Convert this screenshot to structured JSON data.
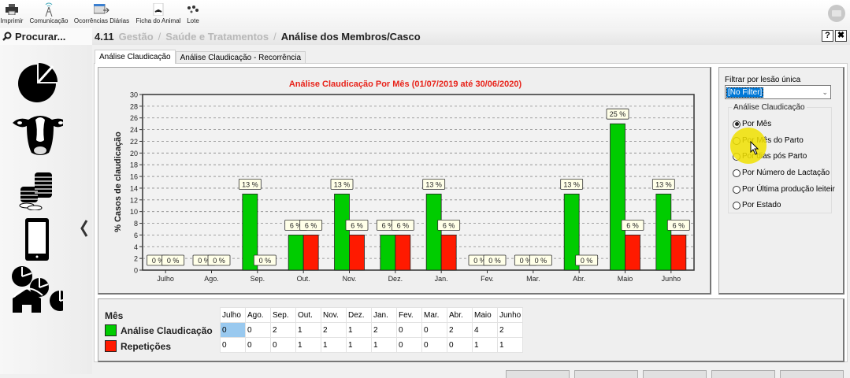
{
  "toolbar": {
    "items": [
      {
        "label": "Imprimir",
        "icon": "printer-icon"
      },
      {
        "label": "Comunicação",
        "icon": "antenna-icon"
      },
      {
        "label": "Ocorrências Diárias",
        "icon": "calendar-icon"
      },
      {
        "label": "Ficha do Animal",
        "icon": "animal-card-icon"
      },
      {
        "label": "Lote",
        "icon": "herd-icon"
      }
    ],
    "mail_icon": "mail-icon"
  },
  "search": {
    "label": "Procurar..."
  },
  "breadcrumb": {
    "number": "4.11",
    "items": [
      "Gestão",
      "Saúde e Tratamentos"
    ],
    "separator": "/",
    "current": "Análise dos Membros/Casco"
  },
  "window": {
    "help_label": "?",
    "close_label": "✖"
  },
  "sidebar": {
    "icons": [
      "pie-chart-icon",
      "cow-icon",
      "coins-icon",
      "mobile-icon",
      "farm-charts-icon"
    ],
    "collapse_label": "‹"
  },
  "tabs": [
    {
      "label": "Análise Claudicação",
      "active": true
    },
    {
      "label": "Análise Claudicação - Recorrência",
      "active": false
    }
  ],
  "filter": {
    "label": "Filtrar por lesão única",
    "value": "[No Filter]",
    "group_label": "Análise Claudicação",
    "options": [
      {
        "label": "Por Mês",
        "checked": true
      },
      {
        "label": "Por Mês do Parto",
        "checked": false
      },
      {
        "label": "Por dias pós Parto",
        "checked": false
      },
      {
        "label": "Por Número de Lactação",
        "checked": false
      },
      {
        "label": "Por Última produção leiteir",
        "checked": false
      },
      {
        "label": "Por Estado",
        "checked": false
      }
    ]
  },
  "colors": {
    "series1": "#00cc00",
    "series2": "#ff1a00",
    "title": "#e8231a",
    "label_bg": "#ffffe8"
  },
  "chart_data": {
    "type": "bar",
    "title": "Análise Claudicação Por Mês (01/07/2019 até 30/06/2020)",
    "xlabel": "",
    "ylabel": "% Casos de claudicação",
    "ylim": [
      0,
      30
    ],
    "yticks": [
      0,
      2,
      4,
      6,
      8,
      10,
      12,
      14,
      16,
      18,
      20,
      22,
      24,
      26,
      28,
      30
    ],
    "grid": true,
    "categories": [
      "Julho",
      "Ago.",
      "Sep.",
      "Out.",
      "Nov.",
      "Dez.",
      "Jan.",
      "Fev.",
      "Mar.",
      "Abr.",
      "Maio",
      "Junho"
    ],
    "series": [
      {
        "name": "Análise Claudicação",
        "color": "#00cc00",
        "values": [
          0,
          0,
          13,
          6,
          13,
          6,
          13,
          0,
          0,
          13,
          25,
          13
        ],
        "labels": [
          "0 %",
          "0 %",
          "13 %",
          "6 %",
          "13 %",
          "6 %",
          "13 %",
          "0 %",
          "0 %",
          "13 %",
          "25 %",
          "13 %"
        ]
      },
      {
        "name": "Repetições",
        "color": "#ff1a00",
        "values": [
          0,
          0,
          0,
          6,
          6,
          6,
          6,
          0,
          0,
          0,
          6,
          6
        ],
        "labels": [
          "0 %",
          "0 %",
          "0 %",
          "6 %",
          "6 %",
          "6 %",
          "6 %",
          "0 %",
          "0 %",
          "0 %",
          "6 %",
          "6 %"
        ]
      }
    ]
  },
  "table": {
    "legend_title": "Mês",
    "headers": [
      "Julho",
      "Ago.",
      "Sep.",
      "Out.",
      "Nov.",
      "Dez.",
      "Jan.",
      "Fev.",
      "Mar.",
      "Abr.",
      "Maio",
      "Junho"
    ],
    "rows": [
      {
        "name": "Análise Claudicação",
        "color": "#00cc00",
        "values": [
          "0",
          "0",
          "2",
          "1",
          "2",
          "1",
          "2",
          "0",
          "0",
          "2",
          "4",
          "2"
        ]
      },
      {
        "name": "Repetições",
        "color": "#ff1a00",
        "values": [
          "0",
          "0",
          "0",
          "1",
          "1",
          "1",
          "1",
          "0",
          "0",
          "0",
          "1",
          "1"
        ]
      }
    ]
  }
}
